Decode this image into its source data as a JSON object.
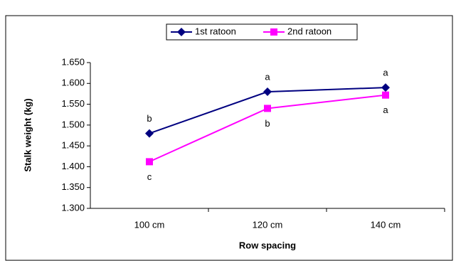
{
  "chart_data": {
    "type": "line",
    "x_label": "Row spacing",
    "y_label": "Stalk weight (kg)",
    "categories": [
      "100 cm",
      "120 cm",
      "140 cm"
    ],
    "series": [
      {
        "name": "1st ratoon",
        "color": "#000080",
        "marker": "diamond",
        "values": [
          1.48,
          1.58,
          1.59
        ],
        "annotations": [
          "b",
          "a",
          "a"
        ]
      },
      {
        "name": "2nd ratoon",
        "color": "#ff00ff",
        "marker": "square",
        "values": [
          1.412,
          1.54,
          1.572
        ],
        "annotations": [
          "c",
          "b",
          "a"
        ]
      }
    ],
    "ylim": [
      1.3,
      1.65
    ],
    "yticks": [
      {
        "value": 1.3,
        "label": "1.300"
      },
      {
        "value": 1.35,
        "label": "1.350"
      },
      {
        "value": 1.4,
        "label": "1.400"
      },
      {
        "value": 1.45,
        "label": "1.450"
      },
      {
        "value": 1.5,
        "label": "1.500"
      },
      {
        "value": 1.55,
        "label": "1.550"
      },
      {
        "value": 1.6,
        "label": "1.600"
      },
      {
        "value": 1.65,
        "label": "1.650"
      }
    ],
    "grid": false,
    "legend": "top"
  }
}
